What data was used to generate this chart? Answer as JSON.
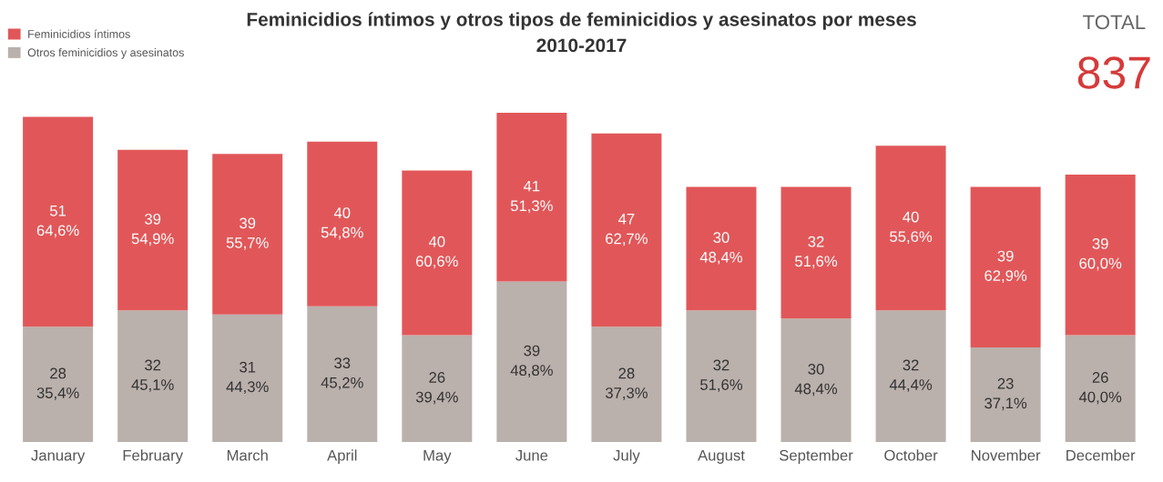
{
  "chart_data": {
    "type": "bar",
    "stacked": true,
    "title": "Feminicidios íntimos y otros tipos de feminicidios y asesinatos por meses\n2010-2017",
    "annotations": [
      "TOTAL",
      "837"
    ],
    "categories": [
      "January",
      "February",
      "March",
      "April",
      "May",
      "June",
      "July",
      "August",
      "September",
      "October",
      "November",
      "December"
    ],
    "series": [
      {
        "name": "Otros feminicidios y asesinatos",
        "color": "#bab0ac",
        "values": [
          28,
          32,
          31,
          33,
          26,
          39,
          28,
          32,
          30,
          32,
          23,
          26
        ],
        "value_labels": [
          "28\n35,4%",
          "32\n45,1%",
          "31\n44,3%",
          "33\n45,2%",
          "26\n39,4%",
          "39\n48,8%",
          "28\n37,3%",
          "32\n51,6%",
          "30\n48,4%",
          "32\n44,4%",
          "23\n37,1%",
          "26\n40,0%"
        ]
      },
      {
        "name": "Feminicidios íntimos",
        "color": "#e15759",
        "values": [
          51,
          39,
          39,
          40,
          40,
          41,
          47,
          30,
          32,
          40,
          39,
          39
        ],
        "value_labels": [
          "51\n64,6%",
          "39\n54,9%",
          "39\n55,7%",
          "40\n54,8%",
          "40\n60,6%",
          "41\n51,3%",
          "47\n62,7%",
          "30\n48,4%",
          "32\n51,6%",
          "40\n55,6%",
          "39\n62,9%",
          "39\n60,0%"
        ]
      }
    ],
    "tick_labels": "x",
    "legend": "top left"
  }
}
